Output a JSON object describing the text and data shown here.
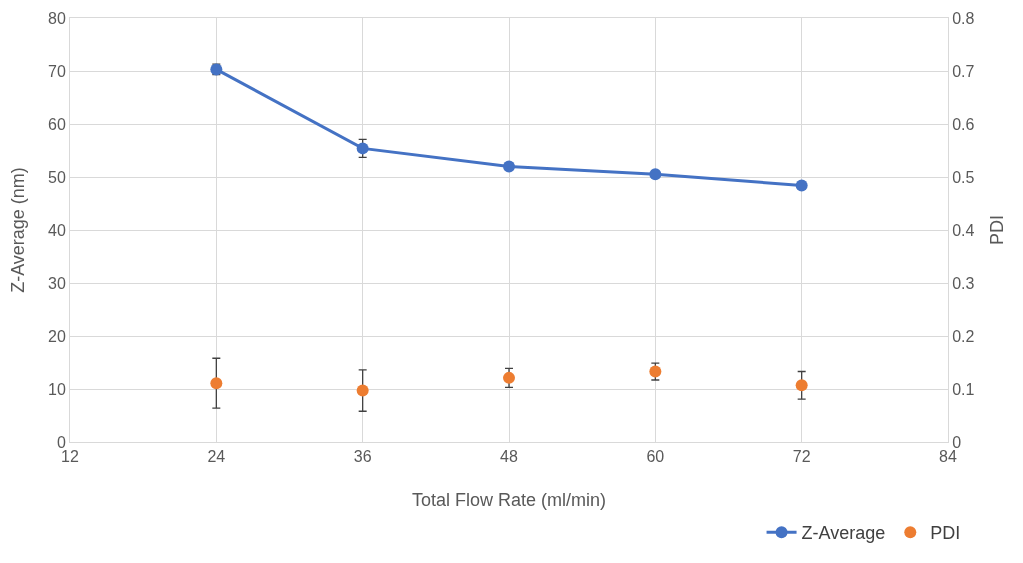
{
  "chart_data": {
    "type": "line",
    "xlabel": "Total Flow Rate (ml/min)",
    "ylabel": "Z-Average (nm)",
    "y2label": "PDI",
    "x": [
      24,
      36,
      48,
      60,
      72
    ],
    "series": [
      {
        "name": "Z-Average",
        "color": "#4472c4",
        "values": [
          70.3,
          55.4,
          52.0,
          50.5,
          48.4
        ],
        "errors": [
          1.0,
          1.7,
          null,
          null,
          null
        ],
        "marker": "circle"
      },
      {
        "name": "PDI",
        "type": "scatter",
        "axis": "y2",
        "color": "#ed7d31",
        "values": [
          0.111,
          0.097,
          0.121,
          0.133,
          0.107
        ],
        "errors": [
          0.047,
          0.039,
          0.018,
          0.016,
          0.026
        ],
        "marker": "circle"
      }
    ],
    "xlim": [
      12,
      84
    ],
    "xticks": [
      12,
      24,
      36,
      48,
      60,
      72,
      84
    ],
    "ylim": [
      0,
      80
    ],
    "yticks": [
      0,
      10,
      20,
      30,
      40,
      50,
      60,
      70,
      80
    ],
    "y2lim": [
      0,
      0.8
    ],
    "y2ticks": [
      0,
      0.1,
      0.2,
      0.3,
      0.4,
      0.5,
      0.6,
      0.7,
      0.8
    ],
    "grid": true,
    "legend": "bottom right",
    "line_style": "solid"
  }
}
